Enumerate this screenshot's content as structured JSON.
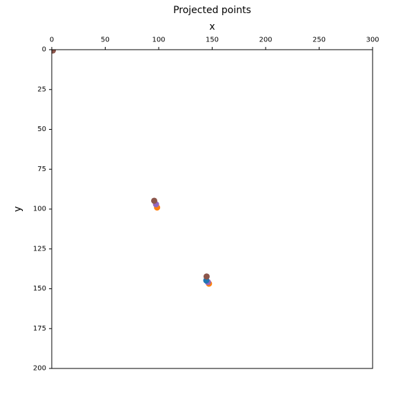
{
  "chart_data": {
    "type": "scatter",
    "title": "Projected points",
    "xlabel": "x",
    "ylabel": "y",
    "xlim": [
      0,
      300
    ],
    "ylim": [
      200,
      0
    ],
    "x_axis_position": "top",
    "y_axis_inverted": true,
    "grid": false,
    "x_ticks": [
      0,
      50,
      100,
      150,
      200,
      250,
      300
    ],
    "y_ticks": [
      0,
      25,
      50,
      75,
      100,
      125,
      150,
      175,
      200
    ],
    "points": [
      {
        "x": 1.0,
        "y": 0.5,
        "color": "#8c564b"
      },
      {
        "x": 98.5,
        "y": 99.0,
        "color": "#ff7f0e"
      },
      {
        "x": 97.5,
        "y": 97.0,
        "color": "#9467bd"
      },
      {
        "x": 95.8,
        "y": 94.8,
        "color": "#8c564b"
      },
      {
        "x": 147.0,
        "y": 146.8,
        "color": "#ff7f0e"
      },
      {
        "x": 146.0,
        "y": 145.8,
        "color": "#9467bd"
      },
      {
        "x": 144.5,
        "y": 144.8,
        "color": "#1f77b4"
      },
      {
        "x": 144.8,
        "y": 142.3,
        "color": "#8c564b"
      }
    ]
  }
}
